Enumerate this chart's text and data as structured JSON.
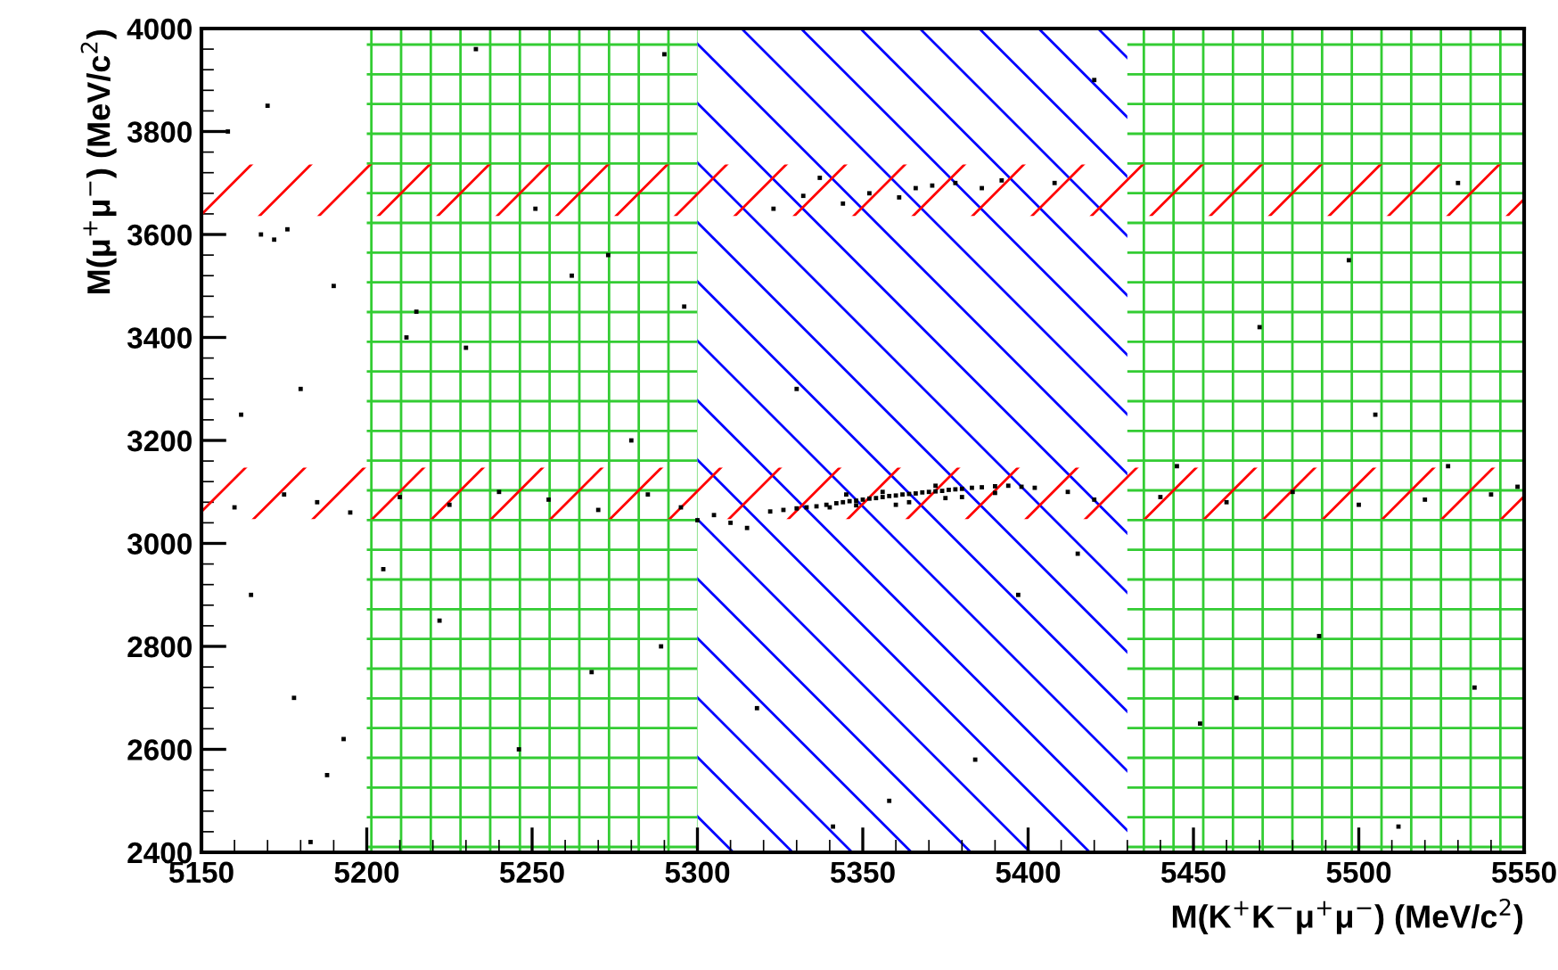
{
  "chart_data": {
    "type": "scatter",
    "xlabel": "M(K$^{+}$K$^{−}$μ$^{+}$μ$^{−}$) (MeV/c$^{2}$)",
    "ylabel": "M(μ$^{+}$μ$^{−}$) (MeV/c$^{2}$)",
    "xlim": [
      5150,
      5550
    ],
    "ylim": [
      2400,
      4000
    ],
    "xticks": [
      5150,
      5200,
      5250,
      5300,
      5350,
      5400,
      5450,
      5500,
      5550
    ],
    "yticks": [
      2400,
      2600,
      2800,
      3000,
      3200,
      3400,
      3600,
      3800,
      4000
    ],
    "grid": false,
    "marker": "square",
    "bands": [
      {
        "axis": "x",
        "from": 5200,
        "to": 5300,
        "color": "#33cc33"
      },
      {
        "axis": "x",
        "from": 5300,
        "to": 5430,
        "color": "#0000ff"
      },
      {
        "axis": "x",
        "from": 5430,
        "to": 5550,
        "color": "#33cc33"
      },
      {
        "axis": "y",
        "from": 3047,
        "to": 3147,
        "color": "#ff0000"
      },
      {
        "axis": "y",
        "from": 3636,
        "to": 3736,
        "color": "#ff0000"
      }
    ],
    "series": [
      {
        "color": "#000000",
        "x": [
          5322,
          5326,
          5330,
          5333,
          5336,
          5339,
          5342,
          5344,
          5346,
          5348,
          5350,
          5352,
          5354,
          5356,
          5358,
          5360,
          5362,
          5364,
          5366,
          5368,
          5370,
          5372,
          5374,
          5376,
          5378,
          5380,
          5383,
          5386,
          5390,
          5394,
          5398,
          5402,
          5340,
          5348,
          5356,
          5364,
          5372,
          5380,
          5345,
          5360,
          5375,
          5390,
          5310,
          5305,
          5315,
          5300,
          5412,
          5420,
          5332,
          5352,
          5366,
          5378,
          5392,
          5361,
          5371,
          5386,
          5344,
          5408,
          5323,
          5337,
          5160,
          5175,
          5185,
          5195,
          5210,
          5225,
          5240,
          5255,
          5270,
          5285,
          5295,
          5440,
          5460,
          5480,
          5500,
          5520,
          5540,
          5548,
          5168,
          5172,
          5176,
          5162,
          5180,
          5190,
          5215,
          5230,
          5262,
          5280,
          5290,
          5330,
          5420,
          5445,
          5470,
          5505,
          5530,
          5165,
          5178,
          5188,
          5205,
          5222,
          5246,
          5268,
          5289,
          5318,
          5358,
          5397,
          5452,
          5488,
          5512,
          5535,
          5158,
          5170,
          5183,
          5193,
          5212,
          5233,
          5251,
          5273,
          5296,
          5341,
          5384,
          5415,
          5463,
          5497,
          5527
        ],
        "values": [
          3062,
          3065,
          3068,
          3070,
          3072,
          3075,
          3078,
          3080,
          3082,
          3083,
          3085,
          3087,
          3088,
          3090,
          3092,
          3093,
          3095,
          3096,
          3097,
          3099,
          3100,
          3101,
          3102,
          3104,
          3105,
          3106,
          3108,
          3109,
          3111,
          3112,
          3110,
          3108,
          3070,
          3074,
          3100,
          3080,
          3112,
          3090,
          3095,
          3075,
          3088,
          3098,
          3040,
          3055,
          3030,
          3045,
          3100,
          3085,
          3675,
          3680,
          3690,
          3700,
          3705,
          3672,
          3695,
          3690,
          3660,
          3700,
          3650,
          3710,
          3070,
          3095,
          3080,
          3060,
          3090,
          3075,
          3100,
          3085,
          3065,
          3095,
          3070,
          3090,
          3080,
          3100,
          3075,
          3085,
          3095,
          3110,
          3600,
          3590,
          3610,
          3250,
          3300,
          3500,
          3450,
          3380,
          3520,
          3200,
          3950,
          3300,
          3900,
          3150,
          3420,
          3250,
          3700,
          2900,
          2700,
          2550,
          2950,
          2850,
          2600,
          2750,
          2800,
          2680,
          2500,
          2900,
          2650,
          2820,
          2450,
          2720,
          3800,
          3850,
          2420,
          2620,
          3400,
          3960,
          3650,
          3560,
          3460,
          2450,
          2580,
          2980,
          2700,
          3550,
          3150
        ]
      }
    ]
  }
}
